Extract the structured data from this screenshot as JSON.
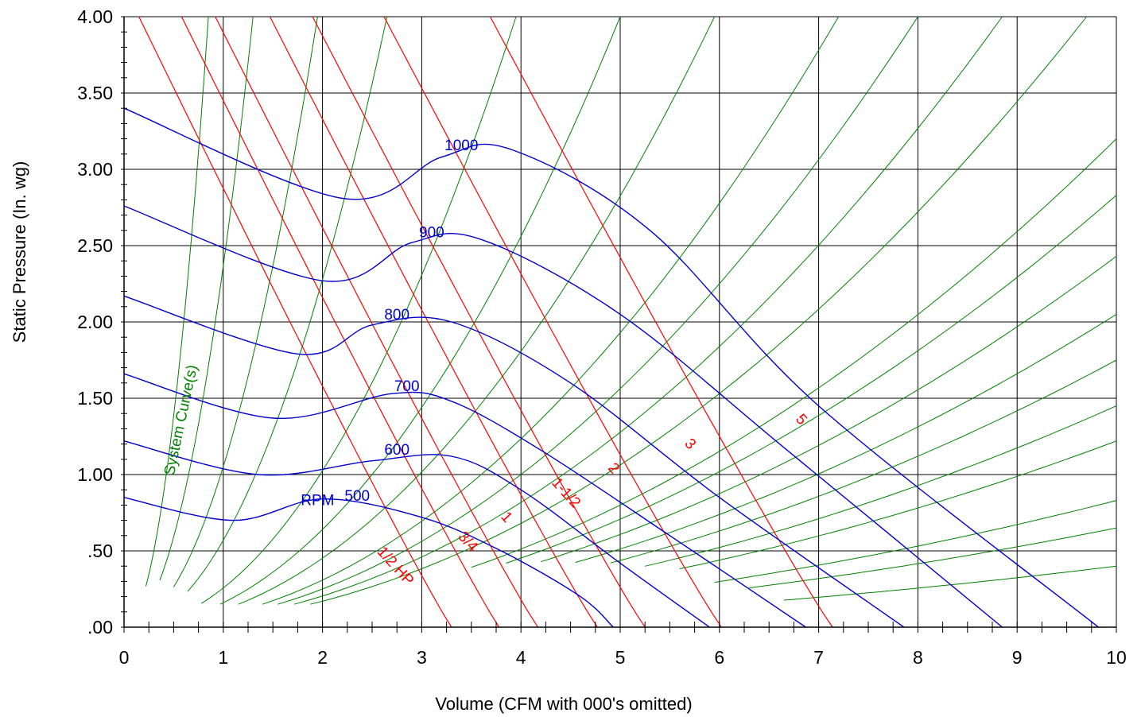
{
  "chart_data": {
    "type": "line",
    "title": "",
    "xlabel": "Volume (CFM with 000's omitted)",
    "ylabel": "Static Pressure (In. wg)",
    "xlim": [
      0,
      10
    ],
    "ylim": [
      0,
      4
    ],
    "x_ticks": [
      {
        "value": 0,
        "label": "0"
      },
      {
        "value": 1,
        "label": "1"
      },
      {
        "value": 2,
        "label": "2"
      },
      {
        "value": 3,
        "label": "3"
      },
      {
        "value": 4,
        "label": "4"
      },
      {
        "value": 5,
        "label": "5"
      },
      {
        "value": 6,
        "label": "6"
      },
      {
        "value": 7,
        "label": "7"
      },
      {
        "value": 8,
        "label": "8"
      },
      {
        "value": 9,
        "label": "9"
      },
      {
        "value": 10,
        "label": "10"
      }
    ],
    "y_ticks": [
      {
        "value": 0,
        "label": ".00"
      },
      {
        "value": 0.5,
        "label": ".50"
      },
      {
        "value": 1,
        "label": "1.00"
      },
      {
        "value": 1.5,
        "label": "1.50"
      },
      {
        "value": 2,
        "label": "2.00"
      },
      {
        "value": 2.5,
        "label": "2.50"
      },
      {
        "value": 3,
        "label": "3.00"
      },
      {
        "value": 3.5,
        "label": "3.50"
      },
      {
        "value": 4,
        "label": "4.00"
      }
    ],
    "grid": true,
    "colors": {
      "rpm": "#0000cc",
      "hp": "#ff0000",
      "system": "#008000",
      "grid": "#000000"
    },
    "rpm_curves": [
      {
        "label": "500",
        "points": [
          [
            0,
            0.85
          ],
          [
            1.1,
            0.7
          ],
          [
            2.0,
            0.84
          ],
          [
            3.0,
            0.72
          ],
          [
            3.8,
            0.5
          ],
          [
            4.6,
            0.2
          ],
          [
            4.93,
            0
          ]
        ]
      },
      {
        "label": "600",
        "points": [
          [
            0,
            1.22
          ],
          [
            1.35,
            1.0
          ],
          [
            2.5,
            1.09
          ],
          [
            3.3,
            1.12
          ],
          [
            4.0,
            0.9
          ],
          [
            5.0,
            0.42
          ],
          [
            5.9,
            0
          ]
        ]
      },
      {
        "label": "700",
        "points": [
          [
            0,
            1.66
          ],
          [
            1.5,
            1.37
          ],
          [
            2.7,
            1.53
          ],
          [
            3.3,
            1.48
          ],
          [
            4.2,
            1.16
          ],
          [
            5.5,
            0.6
          ],
          [
            6.87,
            0
          ]
        ]
      },
      {
        "label": "800",
        "points": [
          [
            0,
            2.17
          ],
          [
            1.75,
            1.79
          ],
          [
            2.5,
            1.98
          ],
          [
            3.3,
            2.0
          ],
          [
            4.5,
            1.6
          ],
          [
            6.0,
            0.85
          ],
          [
            7.86,
            0
          ]
        ]
      },
      {
        "label": "900",
        "points": [
          [
            0,
            2.76
          ],
          [
            2.0,
            2.27
          ],
          [
            2.9,
            2.52
          ],
          [
            3.6,
            2.54
          ],
          [
            5.0,
            2.05
          ],
          [
            6.7,
            1.15
          ],
          [
            8.85,
            0
          ]
        ]
      },
      {
        "label": "1000",
        "points": [
          [
            0,
            3.4
          ],
          [
            2.2,
            2.81
          ],
          [
            3.2,
            3.08
          ],
          [
            3.9,
            3.13
          ],
          [
            5.3,
            2.6
          ],
          [
            7.0,
            1.45
          ],
          [
            9.82,
            0
          ]
        ]
      }
    ],
    "rpm_suffix_label": "RPM",
    "hp_curves": [
      {
        "label": "1/2 HP",
        "x_at_p0": 3.3
      },
      {
        "label": "3/4",
        "x_at_p0": 3.78
      },
      {
        "label": "1",
        "x_at_p0": 4.17
      },
      {
        "label": "1-1/2",
        "x_at_p0": 4.77
      },
      {
        "label": "2",
        "x_at_p0": 5.25
      },
      {
        "label": "3",
        "x_at_p0": 6.02
      },
      {
        "label": "5",
        "x_at_p0": 7.14
      }
    ],
    "system_curves": {
      "label": "System Curve(s)",
      "x_at_p4": [
        0.85,
        1.3,
        1.95,
        2.65,
        3.95,
        5.0,
        5.95,
        7.2,
        8.0,
        8.85,
        9.7
      ],
      "p_at_x10": [
        3.2,
        2.83,
        2.43,
        2.05,
        1.75,
        1.45,
        1.22,
        0.83,
        0.65,
        0.4
      ]
    }
  }
}
